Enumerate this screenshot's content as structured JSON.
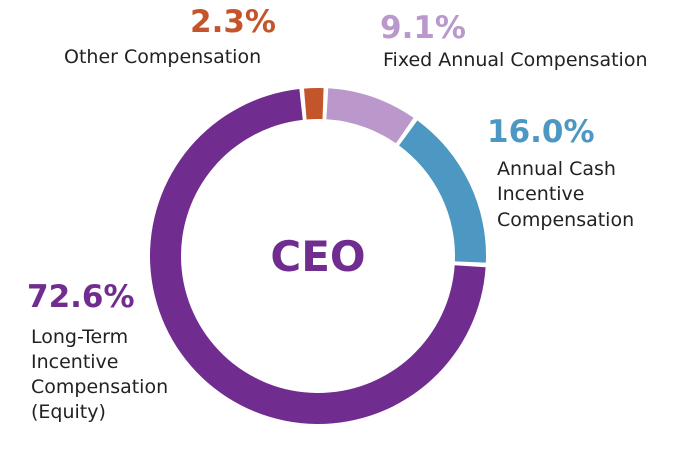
{
  "chart_data": {
    "type": "pie",
    "donut": true,
    "center_label": "CEO",
    "categories": [
      "Fixed Annual Compensation",
      "Annual Cash Incentive Compensation",
      "Long-Term Incentive Compensation (Equity)",
      "Other Compensation"
    ],
    "values": [
      9.1,
      16.0,
      72.6,
      2.3
    ],
    "value_labels": [
      "9.1%",
      "16.0%",
      "72.6%",
      "2.3%"
    ],
    "label_lines": [
      [
        "Fixed Annual Compensation"
      ],
      [
        "Annual Cash",
        "Incentive",
        "Compensation"
      ],
      [
        "Long-Term",
        "Incentive",
        "Compensation",
        "(Equity)"
      ],
      [
        "Other Compensation"
      ]
    ],
    "colors": [
      "#bb98cc",
      "#4c98c2",
      "#702d8f",
      "#c4552b"
    ]
  }
}
